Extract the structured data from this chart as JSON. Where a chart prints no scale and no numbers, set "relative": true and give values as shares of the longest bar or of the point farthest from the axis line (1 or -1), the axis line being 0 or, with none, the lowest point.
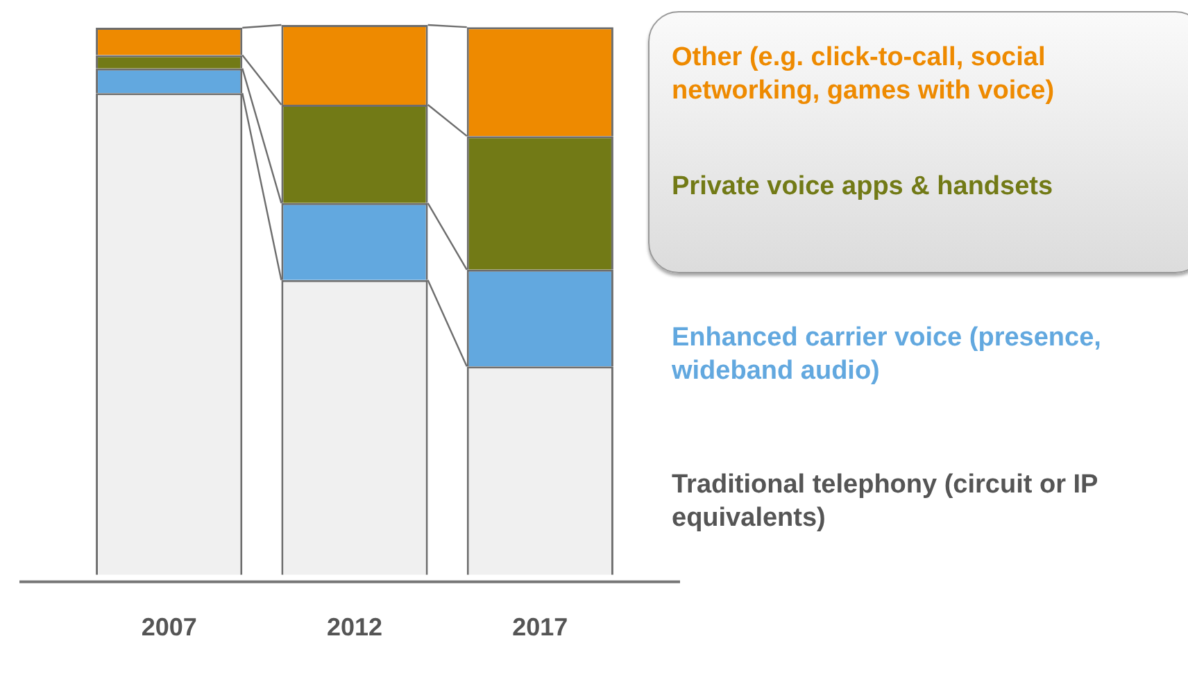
{
  "chart_data": {
    "type": "bar",
    "stacked": true,
    "relative": true,
    "legend": "right",
    "categories": [
      "2007",
      "2012",
      "2017"
    ],
    "series": [
      {
        "name": "Traditional telephony (circuit or IP equivalents)",
        "color": "#f0f0f0",
        "values": [
          0.876,
          0.536,
          0.379
        ]
      },
      {
        "name": "Enhanced carrier voice (presence, wideband audio)",
        "color": "#62a8df",
        "values": [
          0.045,
          0.14,
          0.176
        ]
      },
      {
        "name": "Private voice apps & handsets",
        "color": "#727a16",
        "values": [
          0.024,
          0.179,
          0.243
        ]
      },
      {
        "name": "Other (e.g. click-to-call, social networking, games with voice)",
        "color": "#ee8a00",
        "values": [
          0.05,
          0.145,
          0.198
        ]
      }
    ]
  }
}
